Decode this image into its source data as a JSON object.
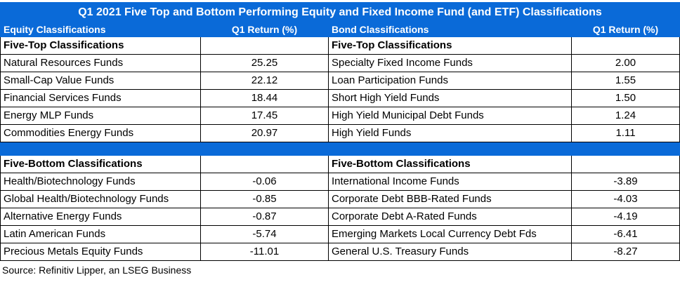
{
  "title": "Q1 2021 Five Top and Bottom Performing Equity and Fixed Income Fund (and ETF) Classifications",
  "headers": {
    "equity": "Equity Classifications",
    "equity_return": "Q1 Return (%)",
    "bond": "Bond Classifications",
    "bond_return": "Q1 Return (%)"
  },
  "top": {
    "equity_label": "Five-Top Classifications",
    "bond_label": "Five-Top Classifications",
    "rows": [
      {
        "equity": "Natural Resources Funds",
        "equity_return": "25.25",
        "bond": "Specialty Fixed Income Funds",
        "bond_return": "2.00"
      },
      {
        "equity": "Small-Cap Value Funds",
        "equity_return": "22.12",
        "bond": "Loan Participation Funds",
        "bond_return": "1.55"
      },
      {
        "equity": "Financial Services Funds",
        "equity_return": "18.44",
        "bond": "Short High Yield Funds",
        "bond_return": "1.50"
      },
      {
        "equity": "Energy MLP Funds",
        "equity_return": "17.45",
        "bond": "High Yield Municipal Debt Funds",
        "bond_return": "1.24"
      },
      {
        "equity": "Commodities Energy Funds",
        "equity_return": "20.97",
        "bond": "High Yield Funds",
        "bond_return": "1.11"
      }
    ]
  },
  "bottom": {
    "equity_label": "Five-Bottom Classifications",
    "bond_label": "Five-Bottom Classifications",
    "rows": [
      {
        "equity": "Health/Biotechnology Funds",
        "equity_return": "-0.06",
        "bond": "International Income Funds",
        "bond_return": "-3.89"
      },
      {
        "equity": "Global Health/Biotechnology Funds",
        "equity_return": "-0.85",
        "bond": "Corporate Debt BBB-Rated Funds",
        "bond_return": "-4.03"
      },
      {
        "equity": "Alternative Energy Funds",
        "equity_return": "-0.87",
        "bond": "Corporate Debt A-Rated Funds",
        "bond_return": "-4.19"
      },
      {
        "equity": "Latin American Funds",
        "equity_return": "-5.74",
        "bond": "Emerging Markets Local Currency Debt Fds",
        "bond_return": "-6.41"
      },
      {
        "equity": "Precious Metals Equity Funds",
        "equity_return": "-11.01",
        "bond": "General U.S. Treasury Funds",
        "bond_return": "-8.27"
      }
    ]
  },
  "source": "Source: Refinitiv Lipper, an LSEG Business",
  "colors": {
    "header_blue": "#0a6ad8"
  }
}
